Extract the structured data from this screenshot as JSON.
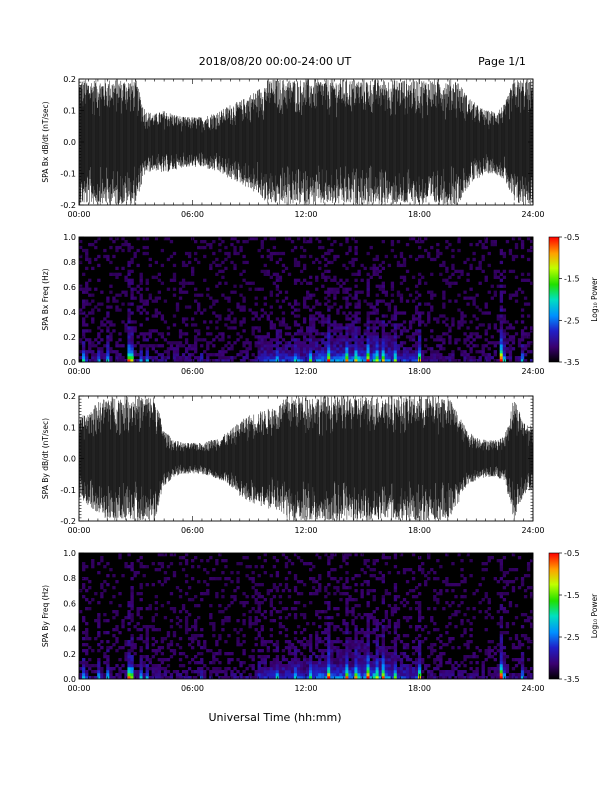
{
  "header": {
    "title": "2018/08/20  00:00-24:00 UT",
    "page": "Page 1/1"
  },
  "footer": {
    "xlabel": "Universal Time (hh:mm)"
  },
  "colorbar": {
    "label": "Log₁₀ Power",
    "ticks": [
      "-0.5",
      "-1.5",
      "-2.5",
      "-3.5"
    ],
    "tick_values": [
      -0.5,
      -1.5,
      -2.5,
      -3.5
    ],
    "range": [
      -3.5,
      -0.5
    ]
  },
  "chart_data": [
    {
      "type": "area",
      "ylabel": "SPA Bx dB/dt (nT/sec)",
      "xticks": [
        "00:00",
        "06:00",
        "12:00",
        "18:00",
        "24:00"
      ],
      "xlim": [
        0,
        24
      ],
      "ylim": [
        -0.2,
        0.2
      ],
      "yticks": [
        "0.2",
        "0.1",
        "0.0",
        "-0.1",
        "-0.2"
      ],
      "ytick_values": [
        0.2,
        0.1,
        0.0,
        -0.1,
        -0.2
      ],
      "envelope_x": [
        0,
        0.5,
        1,
        1.5,
        2,
        2.5,
        3,
        3.5,
        4,
        4.5,
        5,
        5.5,
        6,
        6.5,
        7,
        7.5,
        8,
        8.5,
        9,
        9.5,
        10,
        10.5,
        11,
        11.5,
        12,
        12.5,
        13,
        13.5,
        14,
        14.5,
        15,
        15.5,
        16,
        16.5,
        17,
        17.5,
        18,
        18.5,
        19,
        19.5,
        20,
        20.5,
        21,
        21.5,
        22,
        22.5,
        23,
        23.5,
        24
      ],
      "envelope_amplitude": [
        0.2,
        0.2,
        0.2,
        0.2,
        0.2,
        0.2,
        0.2,
        0.1,
        0.09,
        0.1,
        0.09,
        0.08,
        0.08,
        0.08,
        0.09,
        0.1,
        0.12,
        0.13,
        0.15,
        0.17,
        0.2,
        0.2,
        0.2,
        0.2,
        0.2,
        0.2,
        0.2,
        0.2,
        0.2,
        0.2,
        0.2,
        0.2,
        0.2,
        0.2,
        0.2,
        0.2,
        0.2,
        0.2,
        0.2,
        0.2,
        0.2,
        0.15,
        0.12,
        0.1,
        0.1,
        0.12,
        0.2,
        0.2,
        0.2
      ]
    },
    {
      "type": "heatmap",
      "ylabel": "SPA Bx Freq (Hz)",
      "xticks": [
        "00:00",
        "06:00",
        "12:00",
        "18:00",
        "24:00"
      ],
      "xlim": [
        0,
        24
      ],
      "ylim": [
        0,
        1.0
      ],
      "yticks": [
        "1.0",
        "0.8",
        "0.6",
        "0.4",
        "0.2",
        "0.0"
      ],
      "ytick_values": [
        1.0,
        0.8,
        0.6,
        0.4,
        0.2,
        0.0
      ],
      "zlim": [
        -3.5,
        -0.5
      ],
      "bursts_hours": [
        0.3,
        1.0,
        1.5,
        2.6,
        2.75,
        3.3,
        3.6,
        6.5,
        10.5,
        11.5,
        12.2,
        13.2,
        14.2,
        14.7,
        15.3,
        15.7,
        16.1,
        16.7,
        18.0,
        22.3,
        22.4,
        23.4
      ],
      "bursts_strength": [
        0.9,
        0.5,
        0.5,
        1.4,
        1.3,
        0.4,
        0.3,
        0.2,
        0.3,
        0.5,
        0.6,
        0.7,
        0.9,
        1.0,
        0.9,
        0.8,
        0.7,
        0.6,
        0.8,
        1.6,
        1.3,
        0.5
      ]
    },
    {
      "type": "area",
      "ylabel": "SPA By dB/dt (nT/sec)",
      "xticks": [
        "00:00",
        "06:00",
        "12:00",
        "18:00",
        "24:00"
      ],
      "xlim": [
        0,
        24
      ],
      "ylim": [
        -0.2,
        0.2
      ],
      "yticks": [
        "0.2",
        "0.1",
        "0.0",
        "-0.1",
        "-0.2"
      ],
      "ytick_values": [
        0.2,
        0.1,
        0.0,
        -0.1,
        -0.2
      ],
      "envelope_x": [
        0,
        0.5,
        1,
        1.5,
        2,
        2.5,
        3,
        3.5,
        4,
        4.5,
        5,
        5.5,
        6,
        6.5,
        7,
        7.5,
        8,
        8.5,
        9,
        9.5,
        10,
        10.5,
        11,
        11.5,
        12,
        12.5,
        13,
        13.5,
        14,
        14.5,
        15,
        15.5,
        16,
        16.5,
        17,
        17.5,
        18,
        18.5,
        19,
        19.5,
        20,
        20.5,
        21,
        21.5,
        22,
        22.5,
        23,
        23.5,
        24
      ],
      "envelope_amplitude": [
        0.13,
        0.15,
        0.18,
        0.2,
        0.2,
        0.2,
        0.2,
        0.2,
        0.2,
        0.09,
        0.06,
        0.05,
        0.05,
        0.05,
        0.06,
        0.07,
        0.09,
        0.12,
        0.14,
        0.15,
        0.16,
        0.17,
        0.2,
        0.2,
        0.2,
        0.2,
        0.2,
        0.2,
        0.2,
        0.2,
        0.2,
        0.2,
        0.2,
        0.2,
        0.2,
        0.2,
        0.2,
        0.2,
        0.2,
        0.2,
        0.15,
        0.09,
        0.07,
        0.06,
        0.06,
        0.07,
        0.2,
        0.12,
        0.1
      ]
    },
    {
      "type": "heatmap",
      "ylabel": "SPA By Freq (Hz)",
      "xticks": [
        "00:00",
        "06:00",
        "12:00",
        "18:00",
        "24:00"
      ],
      "xlim": [
        0,
        24
      ],
      "ylim": [
        0,
        1.0
      ],
      "yticks": [
        "1.0",
        "0.8",
        "0.6",
        "0.4",
        "0.2",
        "0.0"
      ],
      "ytick_values": [
        1.0,
        0.8,
        0.6,
        0.4,
        0.2,
        0.0
      ],
      "zlim": [
        -3.5,
        -0.5
      ],
      "bursts_hours": [
        0.3,
        1.0,
        1.5,
        2.6,
        2.75,
        3.3,
        3.6,
        6.5,
        10.5,
        11.5,
        12.2,
        13.2,
        14.2,
        14.7,
        15.3,
        15.7,
        16.1,
        16.7,
        18.0,
        22.3,
        22.4,
        23.4
      ],
      "bursts_strength": [
        0.8,
        0.5,
        0.5,
        1.3,
        1.2,
        0.4,
        0.3,
        0.2,
        0.3,
        0.5,
        0.6,
        0.8,
        1.0,
        1.1,
        1.0,
        0.9,
        0.8,
        0.6,
        0.8,
        1.5,
        1.2,
        0.5
      ]
    }
  ]
}
